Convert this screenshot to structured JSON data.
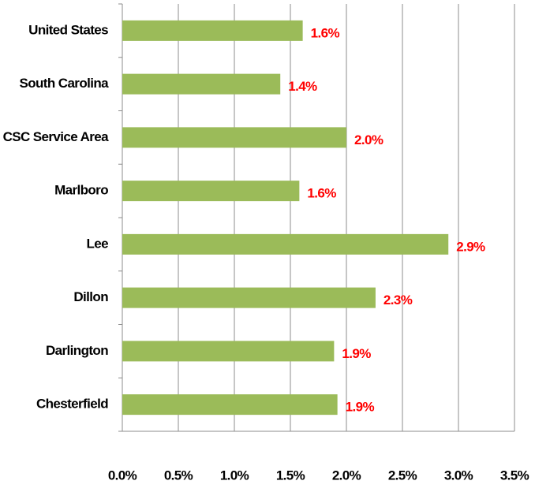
{
  "chart_data": {
    "type": "bar",
    "orientation": "horizontal",
    "categories": [
      "United States",
      "South Carolina",
      "CSC Service Area",
      "Marlboro",
      "Lee",
      "Dillon",
      "Darlington",
      "Chesterfield"
    ],
    "values": [
      1.61,
      1.41,
      2.0,
      1.58,
      2.91,
      2.26,
      1.89,
      1.92
    ],
    "value_labels": [
      "1.6%",
      "1.4%",
      "2.0%",
      "1.6%",
      "2.9%",
      "2.3%",
      "1.9%",
      "1.9%"
    ],
    "color": "#9bbb59",
    "label_color": "#ff0000",
    "xlim": [
      0,
      3.5
    ],
    "xticks": [
      {
        "value": 0,
        "label": "0.0%"
      },
      {
        "value": 0.5,
        "label": "0.5%"
      },
      {
        "value": 1,
        "label": "1.0%"
      },
      {
        "value": 1.5,
        "label": "1.5%"
      },
      {
        "value": 2,
        "label": "2.0%"
      },
      {
        "value": 2.5,
        "label": "2.5%"
      },
      {
        "value": 3,
        "label": "3.0%"
      },
      {
        "value": 3.5,
        "label": "3.5%"
      }
    ],
    "grid": true
  }
}
